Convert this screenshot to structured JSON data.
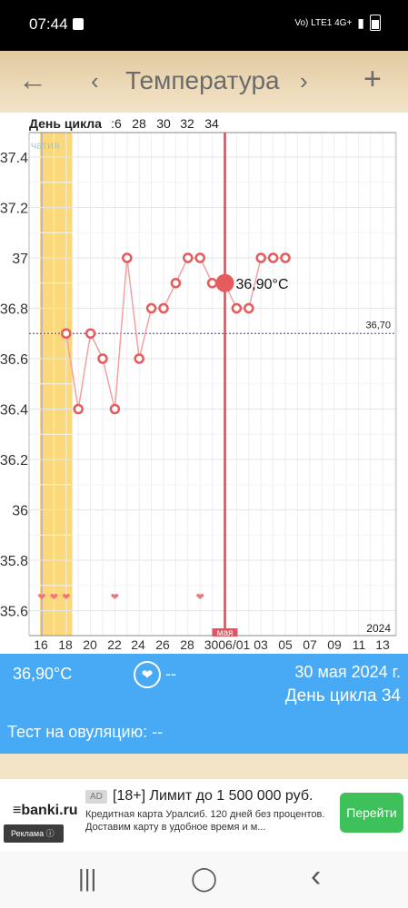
{
  "status": {
    "time": "07:44",
    "network": "Vo) LTE1 4G+"
  },
  "toolbar": {
    "title": "Температура",
    "back_icon": "arrow-left-icon",
    "add_icon": "plus-icon"
  },
  "chart_data": {
    "type": "line",
    "axis_header": "День цикла",
    "top_ticks": [
      ":6",
      "28",
      "30",
      "32",
      "34"
    ],
    "bottom_ticks": [
      "16",
      "18",
      "20",
      "22",
      "24",
      "26",
      "28",
      "3006/01",
      "03",
      "05",
      "07",
      "09",
      "11",
      "13"
    ],
    "yticks": [
      "37.4",
      "37.2",
      "37",
      "36.8",
      "36.6",
      "36.4",
      "36.2",
      "36",
      "35.8",
      "35.6"
    ],
    "ylim": [
      35.55,
      37.5
    ],
    "points": [
      {
        "x": 18,
        "y": 36.7
      },
      {
        "x": 19,
        "y": 36.4
      },
      {
        "x": 20,
        "y": 36.7
      },
      {
        "x": 21,
        "y": 36.6
      },
      {
        "x": 22,
        "y": 36.4
      },
      {
        "x": 23,
        "y": 37.0
      },
      {
        "x": 24,
        "y": 36.6
      },
      {
        "x": 25,
        "y": 36.8
      },
      {
        "x": 26,
        "y": 36.8
      },
      {
        "x": 27,
        "y": 36.9
      },
      {
        "x": 28,
        "y": 37.0
      },
      {
        "x": 29,
        "y": 37.0
      },
      {
        "x": 30,
        "y": 36.9
      },
      {
        "x": 31,
        "y": 36.9
      },
      {
        "x": 32,
        "y": 36.8
      },
      {
        "x": 33,
        "y": 36.8
      },
      {
        "x": 34,
        "y": 37.0
      },
      {
        "x": 35,
        "y": 37.0
      },
      {
        "x": 36,
        "y": 37.0
      }
    ],
    "selected": {
      "x": 31,
      "y": 36.9,
      "label": "36,90°C"
    },
    "reference_line": {
      "y": 36.7,
      "label": "36,70"
    },
    "hearts_x": [
      16,
      17,
      18,
      22,
      29
    ],
    "highlight_label": "чатия",
    "cursor_label": "мая",
    "year_label": "2024",
    "line_color": "#f3a1a1",
    "point_color": "#e65b5b"
  },
  "info": {
    "temperature": "36,90°C",
    "intercourse": "--",
    "date": "30 мая 2024 г.",
    "cycle_day": "День цикла 34"
  },
  "ovulation": {
    "text": "Тест на овуляцию: --"
  },
  "ad": {
    "logo": "≡banki.ru",
    "label": "Реклама",
    "badge": "AD",
    "headline": "[18+] Лимит до 1 500 000 руб.",
    "description": "Кредитная карта Уралсиб. 120 дней без процентов. Доставим карту в удобное время и м...",
    "button": "Перейти"
  },
  "navbar": {
    "recent": "|||",
    "home": "◯",
    "back": "‹"
  }
}
